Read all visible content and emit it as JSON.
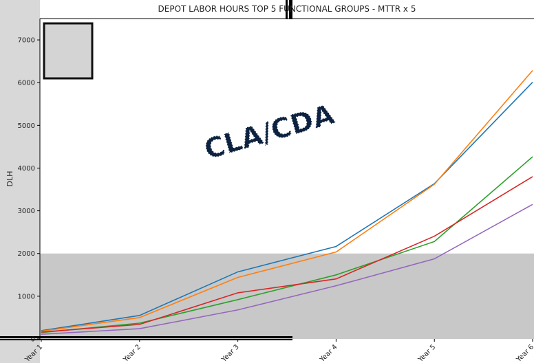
{
  "chart_data": {
    "type": "line",
    "title": "DEPOT LABOR HOURS TOP 5 FUNCTIONAL GROUPS - MTTR x 5",
    "y_label": "DLH",
    "annotation": "CLA/CDA",
    "categories": [
      "Year 1",
      "Year 2",
      "Year 3",
      "Year 4",
      "Year 5",
      "Year 6"
    ],
    "series": [
      {
        "color": "#1f77b4",
        "values": [
          194,
          550,
          1570,
          2165,
          3635,
          6010
        ]
      },
      {
        "color": "#ff7f0e",
        "values": [
          180,
          500,
          1440,
          2035,
          3620,
          6285
        ]
      },
      {
        "color": "#2ca02c",
        "values": [
          150,
          370,
          920,
          1500,
          2280,
          4265
        ]
      },
      {
        "color": "#d62728",
        "values": [
          160,
          340,
          1080,
          1405,
          2405,
          3800
        ]
      },
      {
        "color": "#9467bd",
        "values": [
          110,
          240,
          680,
          1245,
          1875,
          3150
        ]
      }
    ],
    "shaded_range": [
      0,
      2000
    ],
    "shaded_color": "#c8c8c8",
    "ylim": [
      0,
      7500
    ],
    "yticks": [
      0,
      1000,
      2000,
      3000,
      4000,
      5000,
      6000,
      7000
    ]
  }
}
